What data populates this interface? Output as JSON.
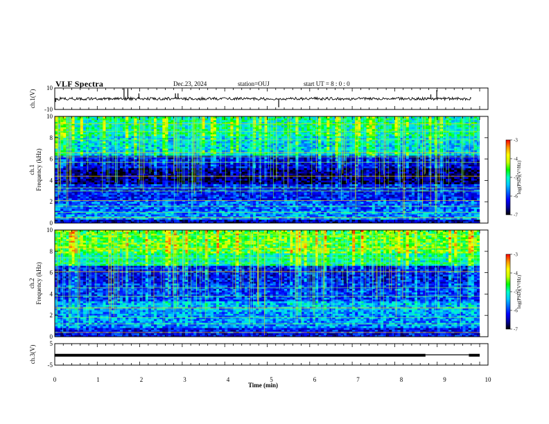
{
  "header": {
    "title": "VLF Spectra",
    "date": "Dec.23, 2024",
    "station": "station=OUJ",
    "start": "start  UT =   8 : 0  : 0"
  },
  "colors": {
    "colormap": [
      "#000000",
      "#00009a",
      "#0000ff",
      "#0064ff",
      "#00c8ff",
      "#00ffc8",
      "#00ff00",
      "#c8ff00",
      "#ffff00",
      "#ff9600",
      "#ff0000",
      "#ffffff"
    ],
    "trace": "#000000"
  },
  "chart_data": [
    {
      "type": "line",
      "panel": "ch1-waveform",
      "ylabel": "ch.1(V)",
      "ylim": [
        -10,
        10
      ],
      "yticks": [
        "10",
        "-10"
      ],
      "xlim": [
        0,
        10
      ],
      "baseline": 0,
      "noise_amplitude": 1.3,
      "spikes": [
        {
          "x": 0.02,
          "y": -3
        },
        {
          "x": 1.63,
          "y": 9.5
        },
        {
          "x": 1.72,
          "y": 9.5
        },
        {
          "x": 1.98,
          "y": 5
        },
        {
          "x": 2.84,
          "y": 5
        },
        {
          "x": 2.9,
          "y": 5
        },
        {
          "x": 5.27,
          "y": -8
        },
        {
          "x": 8.85,
          "y": 4
        },
        {
          "x": 8.99,
          "y": 8
        }
      ]
    },
    {
      "type": "heatmap",
      "panel": "ch1-spectrogram",
      "ylabel": "ch.1\nFrequency  (kHz)",
      "xlim": [
        0,
        10
      ],
      "ylim": [
        0,
        10
      ],
      "yticks": [
        "0",
        "2",
        "4",
        "6",
        "8",
        "10"
      ],
      "colorbar": {
        "label": "log(PSD)(V²/Hz)",
        "range": [
          -7,
          -3
        ],
        "ticks": [
          "-3",
          "-4",
          "-5",
          "-6",
          "-7"
        ]
      },
      "bands": [
        {
          "f0": 0,
          "f1": 0.3,
          "level": -6.4
        },
        {
          "f0": 0.3,
          "f1": 1.2,
          "level": -5.6
        },
        {
          "f0": 1.2,
          "f1": 2.2,
          "level": -5.8
        },
        {
          "f0": 2.2,
          "f1": 3.6,
          "level": -6.1
        },
        {
          "f0": 3.6,
          "f1": 5.2,
          "level": -6.7
        },
        {
          "f0": 5.2,
          "f1": 6.4,
          "level": -6.3
        },
        {
          "f0": 6.4,
          "f1": 8.2,
          "level": -5.3
        },
        {
          "f0": 8.2,
          "f1": 10,
          "level": -5.0
        }
      ],
      "tones_khz": [
        0.5,
        1.0,
        1.6,
        2.1,
        3.0,
        3.3,
        4.4,
        5.7,
        6.2,
        6.6,
        7.8,
        8.6,
        9.3
      ],
      "impulsive_extent_khz": [
        3.5,
        10
      ]
    },
    {
      "type": "heatmap",
      "panel": "ch2-spectrogram",
      "ylabel": "ch.2\nFrequency  (kHz)",
      "xlim": [
        0,
        10
      ],
      "ylim": [
        0,
        10
      ],
      "yticks": [
        "0",
        "2",
        "4",
        "6",
        "8",
        "10"
      ],
      "colorbar": {
        "label": "log(PSD)(V²/Hz)",
        "range": [
          -7,
          -3
        ],
        "ticks": [
          "-3",
          "-4",
          "-5",
          "-6",
          "-7"
        ]
      },
      "bands": [
        {
          "f0": 0,
          "f1": 0.8,
          "level": -6.2
        },
        {
          "f0": 0.8,
          "f1": 2.4,
          "level": -5.6
        },
        {
          "f0": 2.4,
          "f1": 3.4,
          "level": -5.5
        },
        {
          "f0": 3.4,
          "f1": 5.0,
          "level": -6.0
        },
        {
          "f0": 5.0,
          "f1": 6.6,
          "level": -6.2
        },
        {
          "f0": 6.6,
          "f1": 7.8,
          "level": -5.0
        },
        {
          "f0": 7.8,
          "f1": 10,
          "level": -4.5
        }
      ],
      "tones_khz": [
        0.4,
        1.2,
        1.8,
        2.7,
        3.8,
        4.6,
        6.1,
        6.9,
        7.4,
        8.3,
        8.8,
        9.5
      ],
      "impulsive_extent_khz": [
        2.0,
        10
      ]
    },
    {
      "type": "line",
      "panel": "ch3-waveform",
      "ylabel": "ch.3(V)",
      "xlabel": "Time  (min)",
      "xlim": [
        0,
        10
      ],
      "ylim": [
        -5,
        5
      ],
      "yticks": [
        "5",
        "0",
        "-5"
      ],
      "xticks": [
        "0",
        "1",
        "2",
        "3",
        "4",
        "5",
        "6",
        "7",
        "8",
        "9",
        "10"
      ],
      "segments": [
        {
          "x0": 0,
          "x1": 8.55,
          "y": -0.4
        },
        {
          "x0": 8.55,
          "x1": 9.55,
          "y": -0.2
        },
        {
          "x0": 9.55,
          "x1": 9.8,
          "y": -0.4
        }
      ]
    }
  ]
}
